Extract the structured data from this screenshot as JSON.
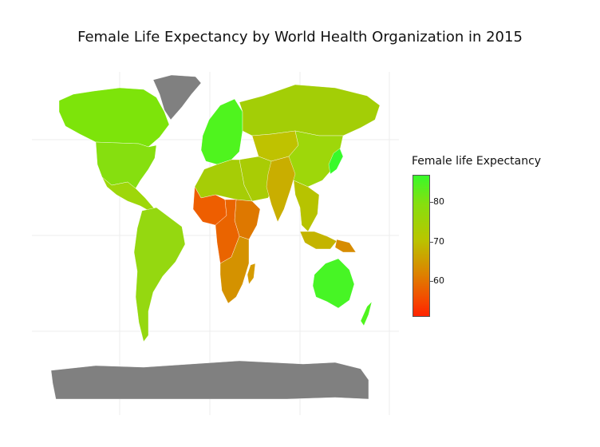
{
  "title": "Female Life Expectancy by World Health Organization in 2015",
  "legend": {
    "title": "Female life Expectancy",
    "ticks": [
      "80",
      "70",
      "60"
    ],
    "colors": {
      "high": "#38fa2a",
      "mid": "#b8c600",
      "low": "#ff2300",
      "no_data": "#808080"
    }
  },
  "regions": [
    {
      "name": "Canada",
      "value": 84,
      "color": "#7de40a"
    },
    {
      "name": "United States",
      "value": 81,
      "color": "#86df0f"
    },
    {
      "name": "Mexico",
      "value": 77,
      "color": "#9ed70a"
    },
    {
      "name": "South America",
      "value": 78,
      "color": "#95d810"
    },
    {
      "name": "Greenland",
      "value": null,
      "color": "#808080"
    },
    {
      "name": "Western Europe",
      "value": 84,
      "color": "#4ff41e"
    },
    {
      "name": "Russia",
      "value": 76,
      "color": "#a3ce06"
    },
    {
      "name": "Central Asia",
      "value": 72,
      "color": "#bfc200"
    },
    {
      "name": "China",
      "value": 77,
      "color": "#9ed70a"
    },
    {
      "name": "Japan",
      "value": 87,
      "color": "#38fa2a"
    },
    {
      "name": "India",
      "value": 70,
      "color": "#c9ae00"
    },
    {
      "name": "Middle East",
      "value": 75,
      "color": "#a9cc05"
    },
    {
      "name": "North Africa",
      "value": 75,
      "color": "#a6cd06"
    },
    {
      "name": "West Africa",
      "value": 58,
      "color": "#ee5e00"
    },
    {
      "name": "Central Africa",
      "value": 60,
      "color": "#ea6400"
    },
    {
      "name": "East Africa",
      "value": 63,
      "color": "#de7800"
    },
    {
      "name": "Southern Africa",
      "value": 66,
      "color": "#d49200"
    },
    {
      "name": "Madagascar",
      "value": 67,
      "color": "#d59b00"
    },
    {
      "name": "Southeast Asia",
      "value": 73,
      "color": "#b7c300"
    },
    {
      "name": "Indonesia",
      "value": 71,
      "color": "#c4b400"
    },
    {
      "name": "Papua New Guinea",
      "value": 65,
      "color": "#d78c00"
    },
    {
      "name": "Australia",
      "value": 85,
      "color": "#47f525"
    },
    {
      "name": "New Zealand",
      "value": 84,
      "color": "#4ff41e"
    },
    {
      "name": "Antarctica",
      "value": null,
      "color": "#808080"
    }
  ]
}
